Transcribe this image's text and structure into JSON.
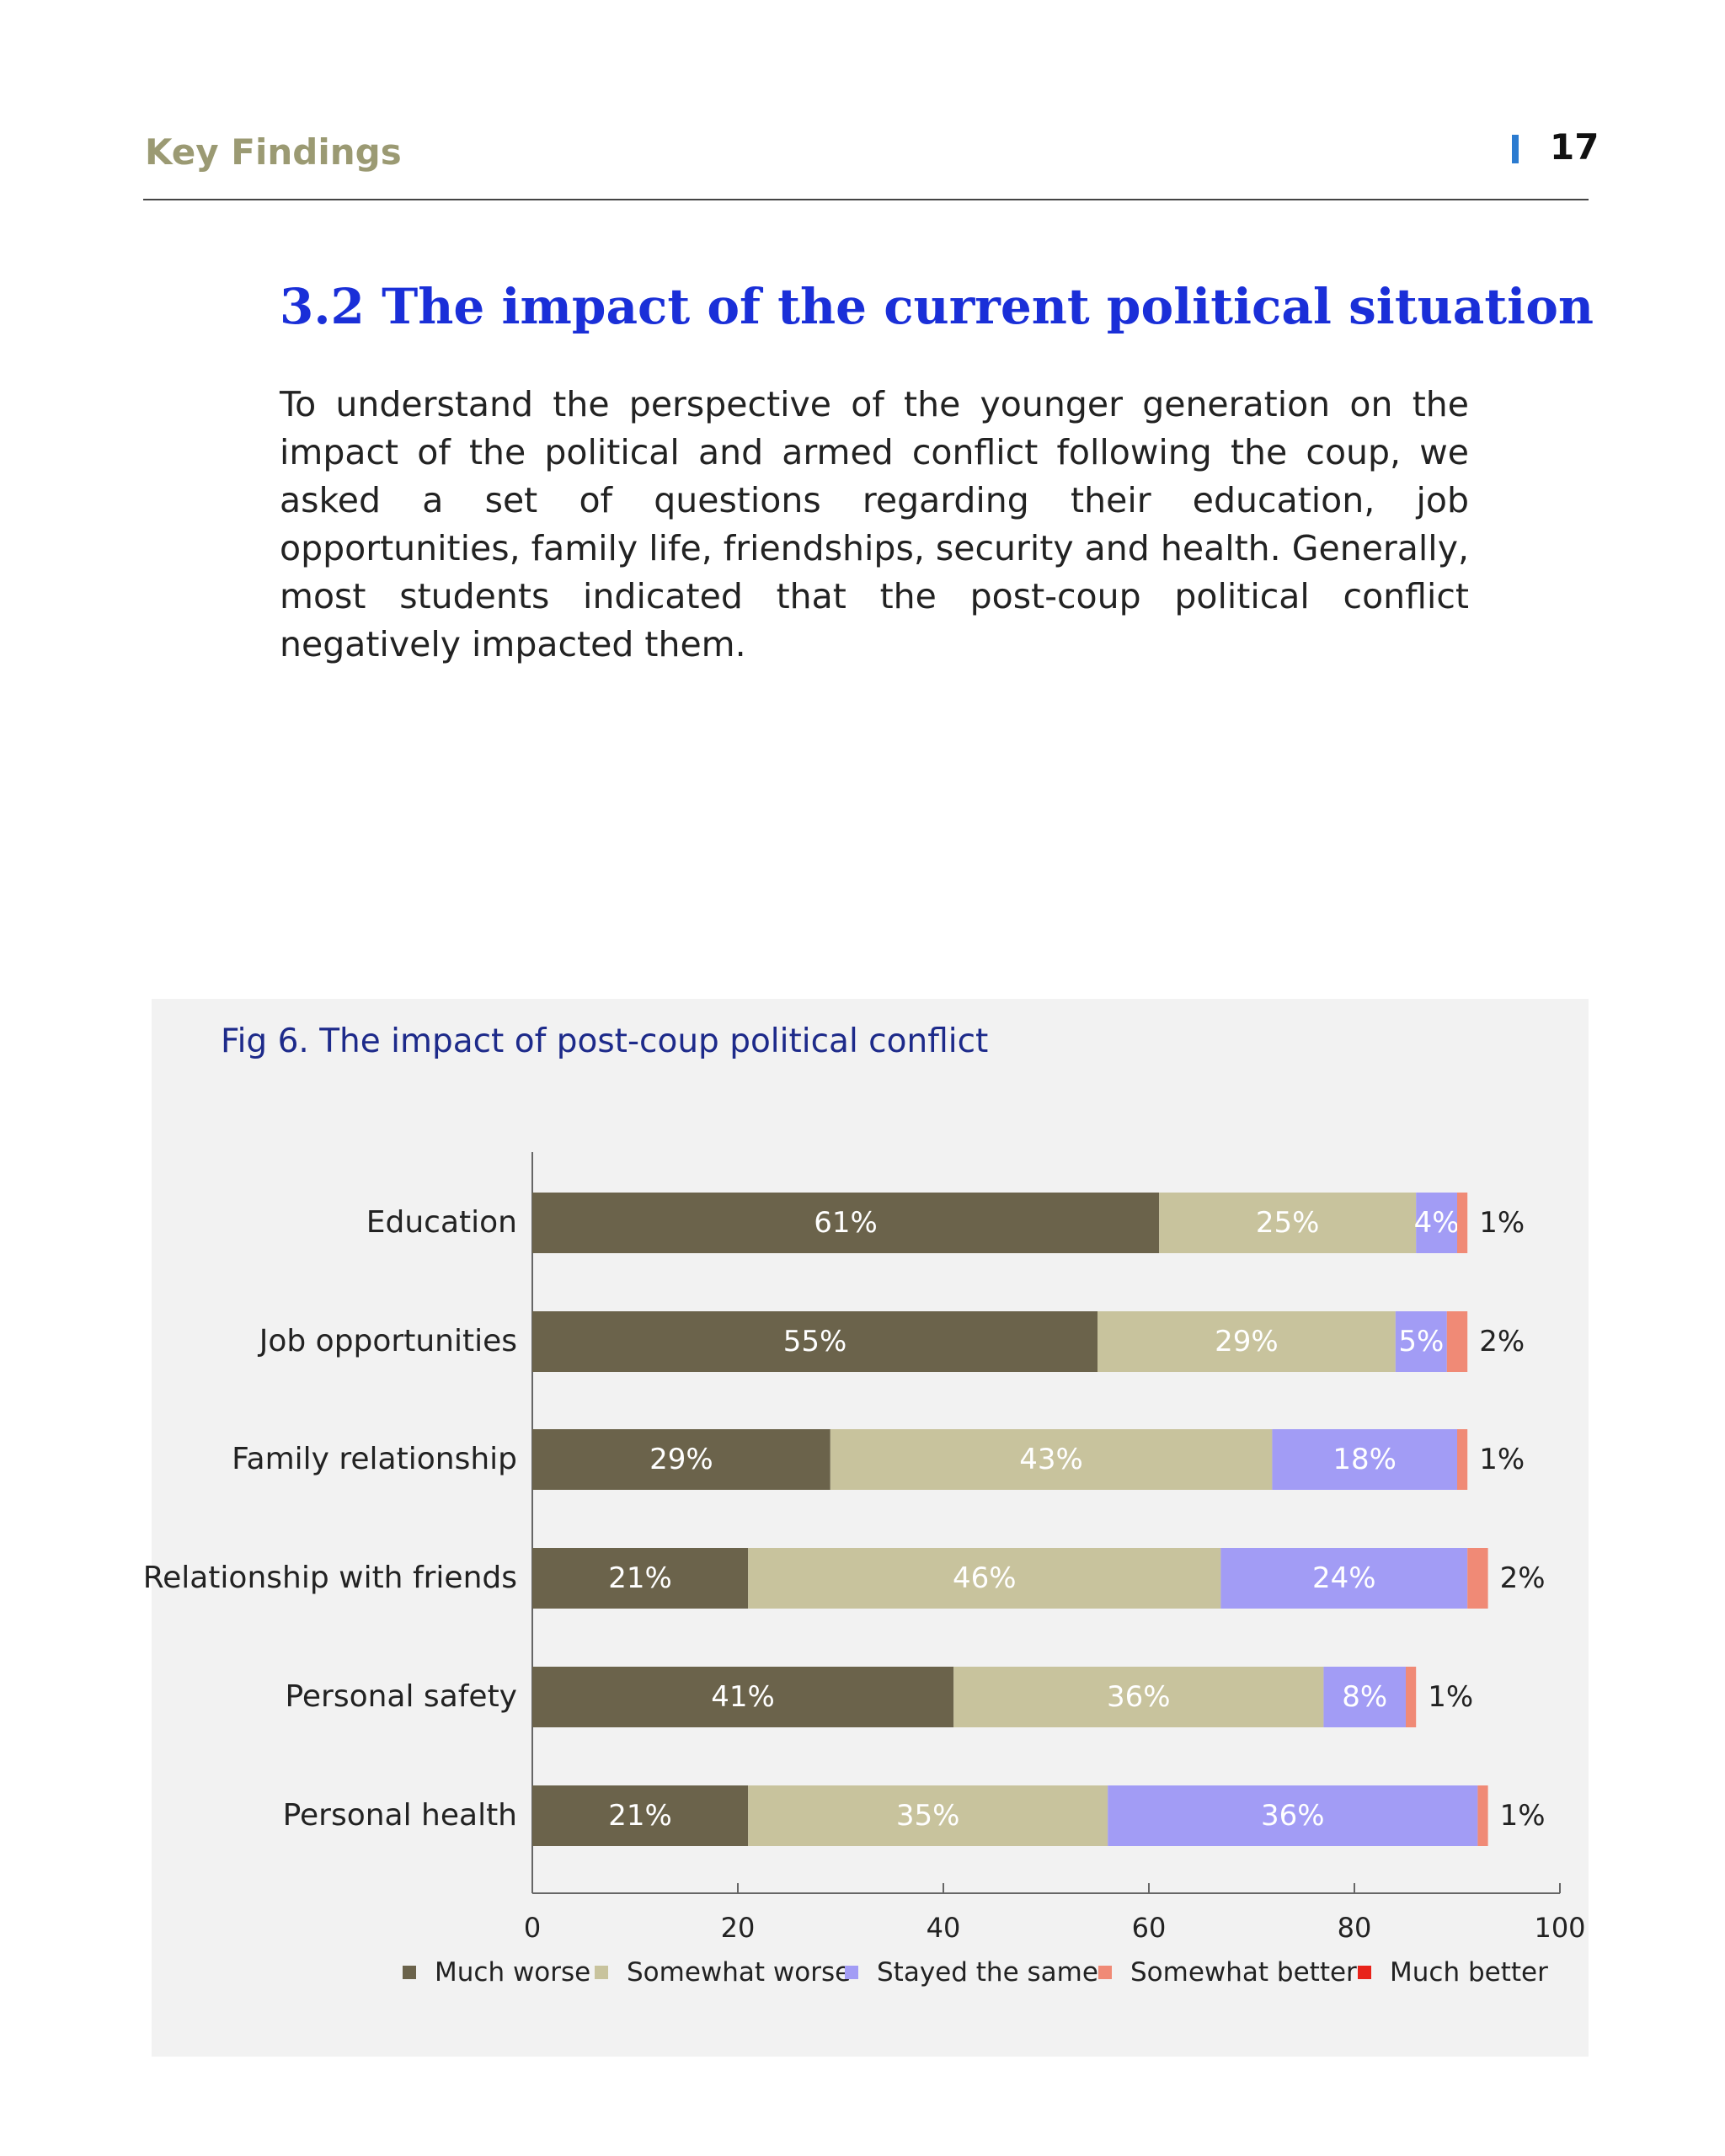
{
  "header": {
    "section": "Key Findings",
    "page_number": "17"
  },
  "section_title": "3.2 The impact of the current political situation",
  "intro_text": "To understand the perspective of the younger generation on the impact of the political and armed conflict following the coup, we asked a set of questions regarding their education, job opportunities, family life, friendships, security and health. Generally, most students indicated that the post-coup political conflict negatively impacted them.",
  "chart_data": {
    "type": "bar",
    "orientation": "horizontal",
    "stacked": true,
    "title": "Fig 6. The impact of post-coup political conflict",
    "categories": [
      "Education",
      "Job opportunities",
      "Family relationship",
      "Relationship with friends",
      "Personal safety",
      "Personal health"
    ],
    "series": [
      {
        "name": "Much worse",
        "color": "#6b634b",
        "values": [
          61,
          55,
          29,
          21,
          41,
          21
        ],
        "labels": [
          "61%",
          "55%",
          "29%",
          "21%",
          "41%",
          "21%"
        ]
      },
      {
        "name": "Somewhat worse",
        "color": "#c8c39d",
        "values": [
          25,
          29,
          43,
          46,
          36,
          35
        ],
        "labels": [
          "25%",
          "29%",
          "43%",
          "46%",
          "36%",
          "35%"
        ]
      },
      {
        "name": "Stayed the same",
        "color": "#a29cf5",
        "values": [
          4,
          5,
          18,
          24,
          8,
          36
        ],
        "labels": [
          "4%",
          "5%",
          "18%",
          "24%",
          "8%",
          "36%"
        ]
      },
      {
        "name": "Somewhat better",
        "color": "#f08a76",
        "values": [
          1,
          2,
          1,
          2,
          1,
          1
        ],
        "labels": [
          "1%",
          "2%",
          "1%",
          "2%",
          "1%",
          "1%"
        ]
      },
      {
        "name": "Much better",
        "color": "#e8231a",
        "values": [
          0,
          0,
          0,
          0,
          0,
          0
        ],
        "labels": [
          "",
          "",
          "",
          "",
          "",
          ""
        ]
      }
    ],
    "xlim": [
      0,
      100
    ],
    "xticks": [
      "0",
      "20",
      "40",
      "60",
      "80",
      "100"
    ],
    "legend_position": "bottom",
    "grid": false,
    "label_color_inside": "#ffffff",
    "label_color_outside": "#222222"
  }
}
